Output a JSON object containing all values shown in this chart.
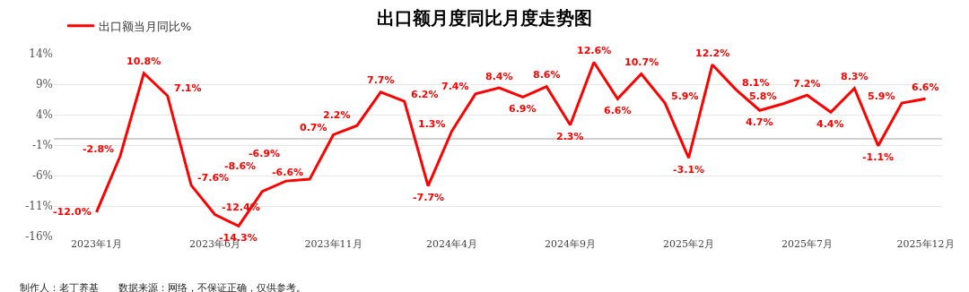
{
  "chart_data": {
    "type": "line",
    "title": "出口额月度同比月度走势图",
    "categories": [
      "2023年1月",
      null,
      null,
      null,
      null,
      "2023年6月",
      null,
      null,
      null,
      null,
      "2023年11月",
      null,
      null,
      null,
      null,
      "2024年4月",
      null,
      null,
      null,
      null,
      "2024年9月",
      null,
      null,
      null,
      null,
      "2025年2月",
      null,
      null,
      null,
      null,
      "2025年7月",
      null,
      null,
      null,
      null,
      "2025年12月"
    ],
    "series": [
      {
        "name": "出口额当月同比%",
        "color": "#ff0000",
        "values": [
          -12.0,
          -2.8,
          10.8,
          7.1,
          -7.6,
          -12.4,
          -14.3,
          -8.6,
          -6.9,
          -6.6,
          0.7,
          2.2,
          7.7,
          6.2,
          -7.7,
          1.3,
          7.4,
          8.4,
          6.9,
          8.6,
          2.3,
          12.6,
          6.6,
          10.7,
          5.9,
          -3.1,
          12.2,
          8.1,
          4.7,
          5.8,
          7.2,
          4.4,
          8.3,
          -1.1,
          5.9,
          6.6
        ],
        "value_labels": [
          "-12.0%",
          "-2.8%",
          "10.8%",
          "7.1%",
          "-7.6%",
          "-12.4%",
          "-14.3%",
          "-8.6%",
          "-6.9%",
          "-6.6%",
          "0.7%",
          "2.2%",
          "7.7%",
          "6.2%",
          "-7.7%",
          "1.3%",
          "7.4%",
          "8.4%",
          "6.9%",
          "8.6%",
          "2.3%",
          "12.6%",
          "6.6%",
          "10.7%",
          "5.9%",
          "-3.1%",
          "12.2%",
          "8.1%",
          "4.7%",
          "5.8%",
          "7.2%",
          "4.4%",
          "8.3%",
          "-1.1%",
          "5.9%",
          "6.6%"
        ]
      }
    ],
    "ylim": [
      -16,
      14
    ],
    "yticks": [
      {
        "value": -16,
        "label": "-16%"
      },
      {
        "value": -11,
        "label": "-11%"
      },
      {
        "value": -6,
        "label": "-6%"
      },
      {
        "value": -1,
        "label": "-1%"
      },
      {
        "value": 4,
        "label": "4%"
      },
      {
        "value": 9,
        "label": "9%"
      },
      {
        "value": 14,
        "label": "14%"
      }
    ],
    "grid": "y",
    "legend": "top left",
    "marker": "none",
    "line_style": "solid",
    "annotations": [
      "制作人：老丁养基　　数据来源：网络，不保证正确，仅供参考。"
    ]
  }
}
